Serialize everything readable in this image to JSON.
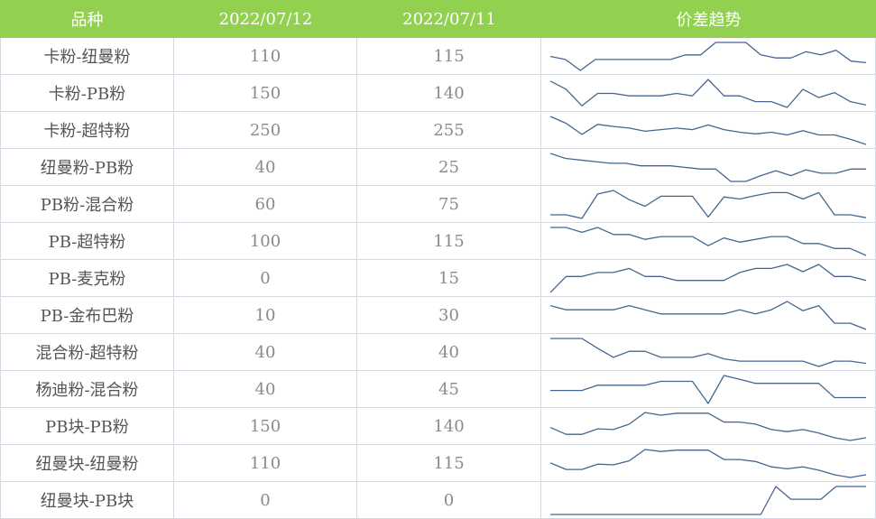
{
  "colors": {
    "header_bg": "#92d050",
    "header_text": "#ffffff",
    "line": "#44668f",
    "grid": "#d5d9e4"
  },
  "table": {
    "headers": [
      "品种",
      "2022/07/12",
      "2022/07/11",
      "价差趋势"
    ]
  },
  "chart_data": {
    "type": "table",
    "title": "",
    "columns": [
      "品种",
      "2022/07/12",
      "2022/07/11",
      "价差趋势"
    ],
    "rows": [
      {
        "name": "卡粉-纽曼粉",
        "v1": "110",
        "v2": "115",
        "trend": [
          115,
          113,
          106,
          113,
          113,
          113,
          113,
          113,
          113,
          116,
          116,
          124,
          124,
          124,
          116,
          114,
          114,
          118,
          116,
          119,
          112,
          111
        ]
      },
      {
        "name": "卡粉-PB粉",
        "v1": "150",
        "v2": "140",
        "trend": [
          150,
          140,
          120,
          135,
          135,
          132,
          132,
          132,
          135,
          132,
          152,
          132,
          132,
          125,
          125,
          118,
          140,
          130,
          136,
          125,
          121
        ]
      },
      {
        "name": "卡粉-超特粉",
        "v1": "250",
        "v2": "255",
        "trend": [
          305,
          292,
          271,
          290,
          286,
          283,
          277,
          280,
          283,
          280,
          289,
          280,
          275,
          272,
          275,
          270,
          278,
          270,
          270,
          262,
          252
        ]
      },
      {
        "name": "纽曼粉-PB粉",
        "v1": "40",
        "v2": "25",
        "trend": [
          75,
          69,
          67,
          65,
          63,
          63,
          60,
          60,
          60,
          58,
          56,
          56,
          41,
          41,
          48,
          54,
          48,
          55,
          51,
          51,
          56,
          56
        ]
      },
      {
        "name": "PB粉-混合粉",
        "v1": "60",
        "v2": "75",
        "trend": [
          62,
          62,
          57,
          91,
          96,
          83,
          74,
          88,
          88,
          88,
          59,
          87,
          84,
          89,
          93,
          93,
          84,
          93,
          62,
          62,
          58
        ]
      },
      {
        "name": "PB-超特粉",
        "v1": "100",
        "v2": "115",
        "trend": [
          145,
          145,
          138,
          145,
          135,
          135,
          128,
          132,
          132,
          132,
          119,
          130,
          124,
          128,
          132,
          132,
          122,
          122,
          115,
          115,
          105
        ]
      },
      {
        "name": "PB-麦克粉",
        "v1": "0",
        "v2": "15",
        "trend": [
          -10,
          10,
          10,
          15,
          15,
          20,
          10,
          10,
          5,
          5,
          5,
          5,
          15,
          20,
          20,
          25,
          16,
          25,
          10,
          10,
          5
        ]
      },
      {
        "name": "PB-金布巴粉",
        "v1": "10",
        "v2": "30",
        "trend": [
          48,
          44,
          44,
          44,
          44,
          48,
          44,
          40,
          40,
          40,
          40,
          40,
          44,
          40,
          44,
          52,
          43,
          48,
          31,
          31,
          25
        ]
      },
      {
        "name": "混合粉-超特粉",
        "v1": "40",
        "v2": "40",
        "trend": [
          75,
          75,
          75,
          62,
          50,
          58,
          58,
          50,
          50,
          50,
          55,
          48,
          45,
          45,
          45,
          45,
          45,
          38,
          45,
          45,
          42
        ]
      },
      {
        "name": "杨迪粉-混合粉",
        "v1": "40",
        "v2": "45",
        "trend": [
          55,
          55,
          55,
          63,
          63,
          63,
          63,
          69,
          69,
          69,
          35,
          78,
          72,
          66,
          66,
          66,
          66,
          66,
          44,
          44,
          44
        ]
      },
      {
        "name": "PB块-PB粉",
        "v1": "150",
        "v2": "140",
        "trend": [
          165,
          155,
          155,
          163,
          162,
          170,
          187,
          183,
          186,
          186,
          186,
          173,
          173,
          170,
          162,
          159,
          162,
          157,
          150,
          146,
          150
        ]
      },
      {
        "name": "纽曼块-纽曼粉",
        "v1": "110",
        "v2": "115",
        "trend": [
          135,
          125,
          125,
          133,
          132,
          138,
          155,
          152,
          154,
          154,
          154,
          140,
          140,
          137,
          129,
          126,
          129,
          124,
          117,
          113,
          117
        ]
      },
      {
        "name": "纽曼块-PB块",
        "v1": "0",
        "v2": "0",
        "trend": [
          -20,
          -20,
          -20,
          -20,
          -20,
          -20,
          -20,
          -20,
          -20,
          -20,
          -20,
          -20,
          -20,
          -20,
          -20,
          35,
          10,
          10,
          10,
          35,
          35,
          35
        ]
      }
    ]
  }
}
